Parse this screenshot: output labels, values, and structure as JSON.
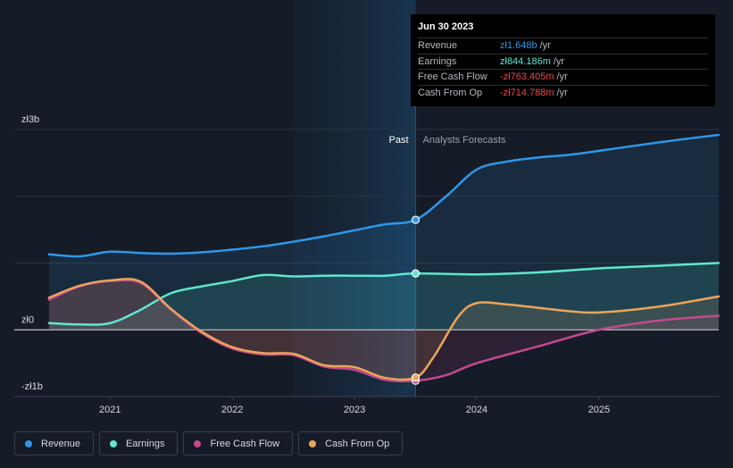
{
  "chart_data": {
    "type": "line",
    "x_range": [
      2020.45,
      2025.98
    ],
    "y_range": [
      -1.0,
      3.0
    ],
    "y_ticks": [
      {
        "value": 3.0,
        "label": "zł3b"
      },
      {
        "value": 0.0,
        "label": "zł0"
      },
      {
        "value": -1.0,
        "label": "-zł1b"
      }
    ],
    "x_ticks": [
      {
        "value": 2021,
        "label": "2021"
      },
      {
        "value": 2022,
        "label": "2022"
      },
      {
        "value": 2023,
        "label": "2023"
      },
      {
        "value": 2024,
        "label": "2024"
      },
      {
        "value": 2025,
        "label": "2025"
      }
    ],
    "past_label": "Past",
    "forecast_label": "Analysts Forecasts",
    "divider_x": 2023.5,
    "highlight_start_x": 2022.5,
    "series": [
      {
        "name": "Revenue",
        "color": "#2f97e8",
        "points": [
          [
            2020.5,
            1.13
          ],
          [
            2020.75,
            1.1
          ],
          [
            2021.0,
            1.17
          ],
          [
            2021.25,
            1.15
          ],
          [
            2021.5,
            1.14
          ],
          [
            2021.75,
            1.16
          ],
          [
            2022.0,
            1.2
          ],
          [
            2022.25,
            1.25
          ],
          [
            2022.5,
            1.32
          ],
          [
            2022.75,
            1.4
          ],
          [
            2023.0,
            1.49
          ],
          [
            2023.25,
            1.58
          ],
          [
            2023.5,
            1.648
          ]
        ],
        "forecast": [
          [
            2023.5,
            1.648
          ],
          [
            2023.75,
            2.0
          ],
          [
            2024.0,
            2.4
          ],
          [
            2024.25,
            2.52
          ],
          [
            2024.5,
            2.58
          ],
          [
            2024.75,
            2.62
          ],
          [
            2025.0,
            2.68
          ],
          [
            2025.5,
            2.81
          ],
          [
            2025.98,
            2.92
          ]
        ]
      },
      {
        "name": "Earnings",
        "color": "#5fe6cf",
        "points": [
          [
            2020.5,
            0.1
          ],
          [
            2020.75,
            0.08
          ],
          [
            2021.0,
            0.1
          ],
          [
            2021.25,
            0.3
          ],
          [
            2021.5,
            0.55
          ],
          [
            2021.75,
            0.65
          ],
          [
            2022.0,
            0.73
          ],
          [
            2022.25,
            0.82
          ],
          [
            2022.5,
            0.8
          ],
          [
            2022.75,
            0.81
          ],
          [
            2023.0,
            0.81
          ],
          [
            2023.25,
            0.81
          ],
          [
            2023.5,
            0.844
          ]
        ],
        "forecast": [
          [
            2023.5,
            0.844
          ],
          [
            2024.0,
            0.83
          ],
          [
            2024.5,
            0.86
          ],
          [
            2025.0,
            0.92
          ],
          [
            2025.5,
            0.96
          ],
          [
            2025.98,
            1.0
          ]
        ]
      },
      {
        "name": "Free Cash Flow",
        "color": "#c24a8b",
        "points": [
          [
            2020.5,
            0.45
          ],
          [
            2020.75,
            0.65
          ],
          [
            2021.0,
            0.73
          ],
          [
            2021.25,
            0.7
          ],
          [
            2021.5,
            0.3
          ],
          [
            2021.75,
            -0.05
          ],
          [
            2022.0,
            -0.28
          ],
          [
            2022.25,
            -0.37
          ],
          [
            2022.5,
            -0.38
          ],
          [
            2022.75,
            -0.55
          ],
          [
            2023.0,
            -0.6
          ],
          [
            2023.25,
            -0.75
          ],
          [
            2023.5,
            -0.763
          ]
        ],
        "forecast": [
          [
            2023.5,
            -0.763
          ],
          [
            2023.75,
            -0.68
          ],
          [
            2024.0,
            -0.5
          ],
          [
            2024.5,
            -0.25
          ],
          [
            2025.0,
            0.0
          ],
          [
            2025.5,
            0.14
          ],
          [
            2025.98,
            0.21
          ]
        ]
      },
      {
        "name": "Cash From Op",
        "color": "#eba55b",
        "points": [
          [
            2020.5,
            0.48
          ],
          [
            2020.75,
            0.66
          ],
          [
            2021.0,
            0.74
          ],
          [
            2021.25,
            0.72
          ],
          [
            2021.5,
            0.31
          ],
          [
            2021.75,
            -0.03
          ],
          [
            2022.0,
            -0.26
          ],
          [
            2022.25,
            -0.35
          ],
          [
            2022.5,
            -0.36
          ],
          [
            2022.75,
            -0.53
          ],
          [
            2023.0,
            -0.56
          ],
          [
            2023.25,
            -0.72
          ],
          [
            2023.5,
            -0.715
          ]
        ],
        "forecast": [
          [
            2023.5,
            -0.715
          ],
          [
            2023.65,
            -0.4
          ],
          [
            2023.85,
            0.2
          ],
          [
            2024.0,
            0.4
          ],
          [
            2024.25,
            0.38
          ],
          [
            2024.5,
            0.33
          ],
          [
            2024.75,
            0.28
          ],
          [
            2025.0,
            0.26
          ],
          [
            2025.5,
            0.35
          ],
          [
            2025.98,
            0.5
          ]
        ]
      }
    ]
  },
  "tooltip": {
    "date": "Jun 30 2023",
    "rows": [
      {
        "label": "Revenue",
        "value": "zł1.648b",
        "unit": "/yr",
        "color": "#2f97e8"
      },
      {
        "label": "Earnings",
        "value": "zł844.186m",
        "unit": "/yr",
        "color": "#5fe6cf"
      },
      {
        "label": "Free Cash Flow",
        "value": "-zł763.405m",
        "unit": "/yr",
        "color": "#f04848"
      },
      {
        "label": "Cash From Op",
        "value": "-zł714.788m",
        "unit": "/yr",
        "color": "#f04848"
      }
    ]
  },
  "legend": [
    {
      "label": "Revenue",
      "color": "#2f97e8"
    },
    {
      "label": "Earnings",
      "color": "#5fe6cf"
    },
    {
      "label": "Free Cash Flow",
      "color": "#c24a8b"
    },
    {
      "label": "Cash From Op",
      "color": "#eba55b"
    }
  ]
}
